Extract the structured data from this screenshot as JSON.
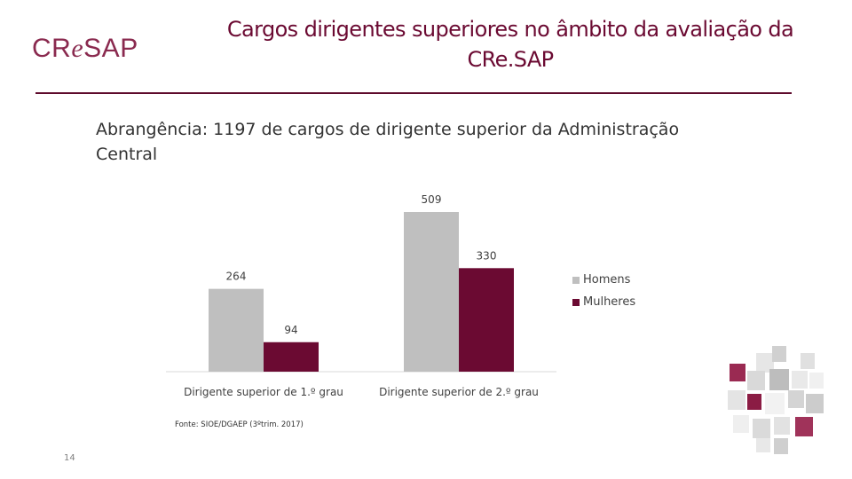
{
  "logo": {
    "part1": "CR",
    "part2": "e",
    "part3": "SAP"
  },
  "header": {
    "title": "Cargos dirigentes superiores no âmbito da avaliação da CRe.SAP"
  },
  "subtitle": "Abrangência: 1197 de cargos de dirigente superior da Administração Central",
  "chart_data": {
    "type": "bar",
    "categories": [
      "Dirigente superior de 1.º grau",
      "Dirigente superior de 2.º grau"
    ],
    "series": [
      {
        "name": "Homens",
        "values": [
          264,
          509
        ],
        "color": "#bfbfbf"
      },
      {
        "name": "Mulheres",
        "values": [
          94,
          330
        ],
        "color": "#6b0a32"
      }
    ],
    "data_labels": true,
    "legend_position": "right",
    "grid": false,
    "ylim": [
      0,
      509
    ]
  },
  "source": "Fonte: SIOE/DGAEP (3ºtrim. 2017)",
  "page_number": "14",
  "decoration": {
    "icon": "cubes-decoration-icon"
  }
}
